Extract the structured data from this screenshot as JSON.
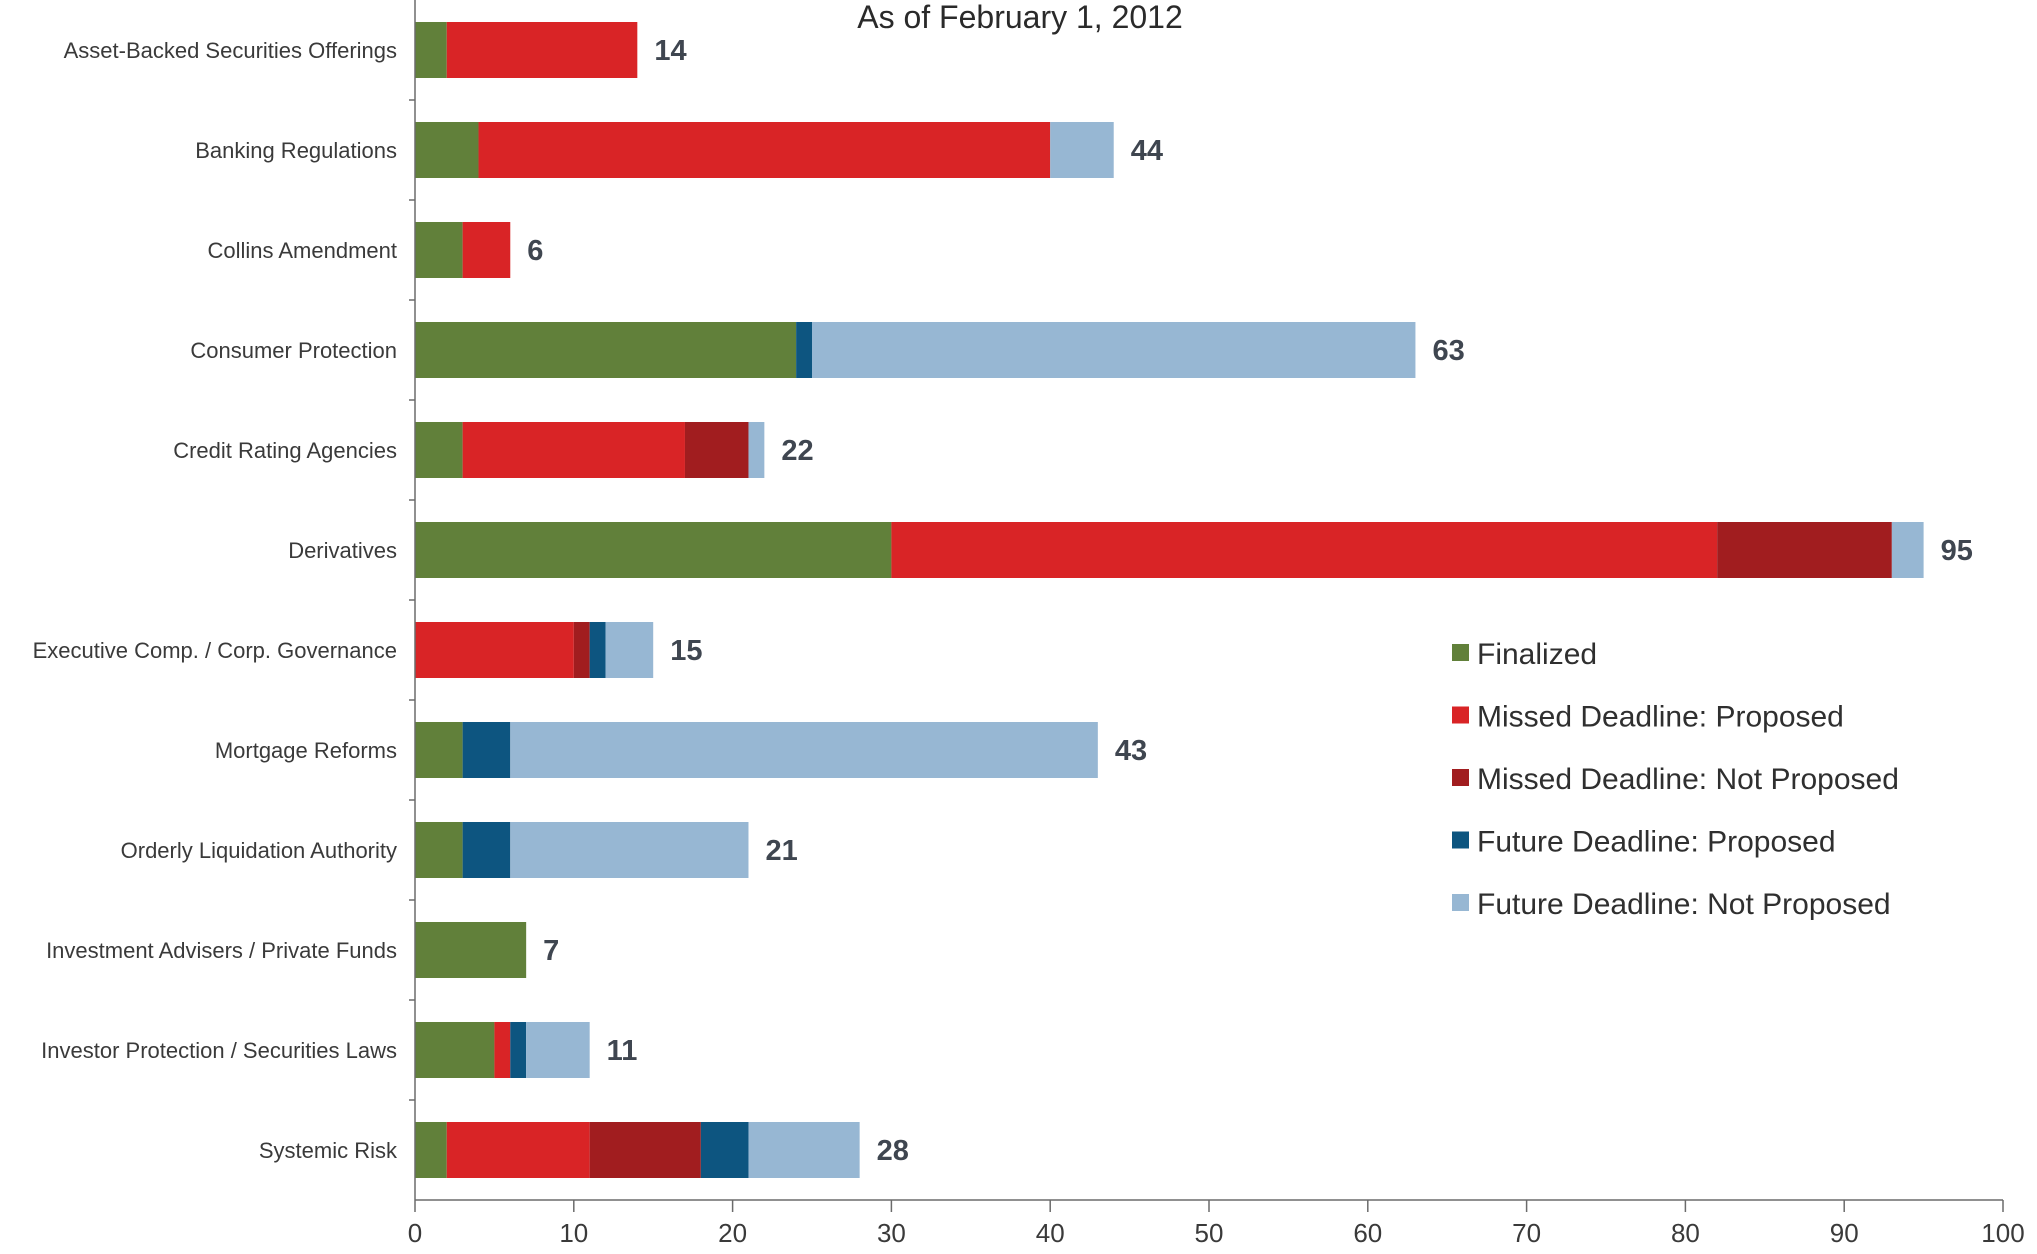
{
  "chart_data": {
    "type": "bar",
    "orientation": "horizontal",
    "stacked": true,
    "title": "As of February 1, 2012",
    "xlabel": "",
    "ylabel": "",
    "xlim": [
      0,
      100
    ],
    "xticks": [
      0,
      10,
      20,
      30,
      40,
      50,
      60,
      70,
      80,
      90,
      100
    ],
    "grid": false,
    "legend_position": "right",
    "categories": [
      "Asset-Backed Securities Offerings",
      "Banking Regulations",
      "Collins Amendment",
      "Consumer Protection",
      "Credit Rating Agencies",
      "Derivatives",
      "Executive Comp. / Corp. Governance",
      "Mortgage Reforms",
      "Orderly Liquidation Authority",
      "Investment Advisers / Private Funds",
      "Investor Protection / Securities Laws",
      "Systemic Risk"
    ],
    "series": [
      {
        "name": "Finalized",
        "color": "#61803a",
        "values": [
          2,
          4,
          3,
          24,
          3,
          30,
          0,
          3,
          3,
          7,
          5,
          2
        ]
      },
      {
        "name": "Missed Deadline: Proposed",
        "color": "#d92426",
        "values": [
          12,
          36,
          3,
          0,
          14,
          52,
          10,
          0,
          0,
          0,
          1,
          9
        ]
      },
      {
        "name": "Missed Deadline: Not Proposed",
        "color": "#a11d1f",
        "values": [
          0,
          0,
          0,
          0,
          4,
          11,
          1,
          0,
          0,
          0,
          0,
          7
        ]
      },
      {
        "name": "Future Deadline: Proposed",
        "color": "#0d5580",
        "values": [
          0,
          0,
          0,
          1,
          0,
          0,
          1,
          3,
          3,
          0,
          1,
          3
        ]
      },
      {
        "name": "Future Deadline: Not Proposed",
        "color": "#97b7d3",
        "values": [
          0,
          4,
          0,
          38,
          1,
          2,
          3,
          37,
          15,
          0,
          4,
          7
        ]
      }
    ],
    "totals": [
      14,
      44,
      6,
      63,
      22,
      95,
      15,
      43,
      21,
      7,
      11,
      28
    ]
  }
}
